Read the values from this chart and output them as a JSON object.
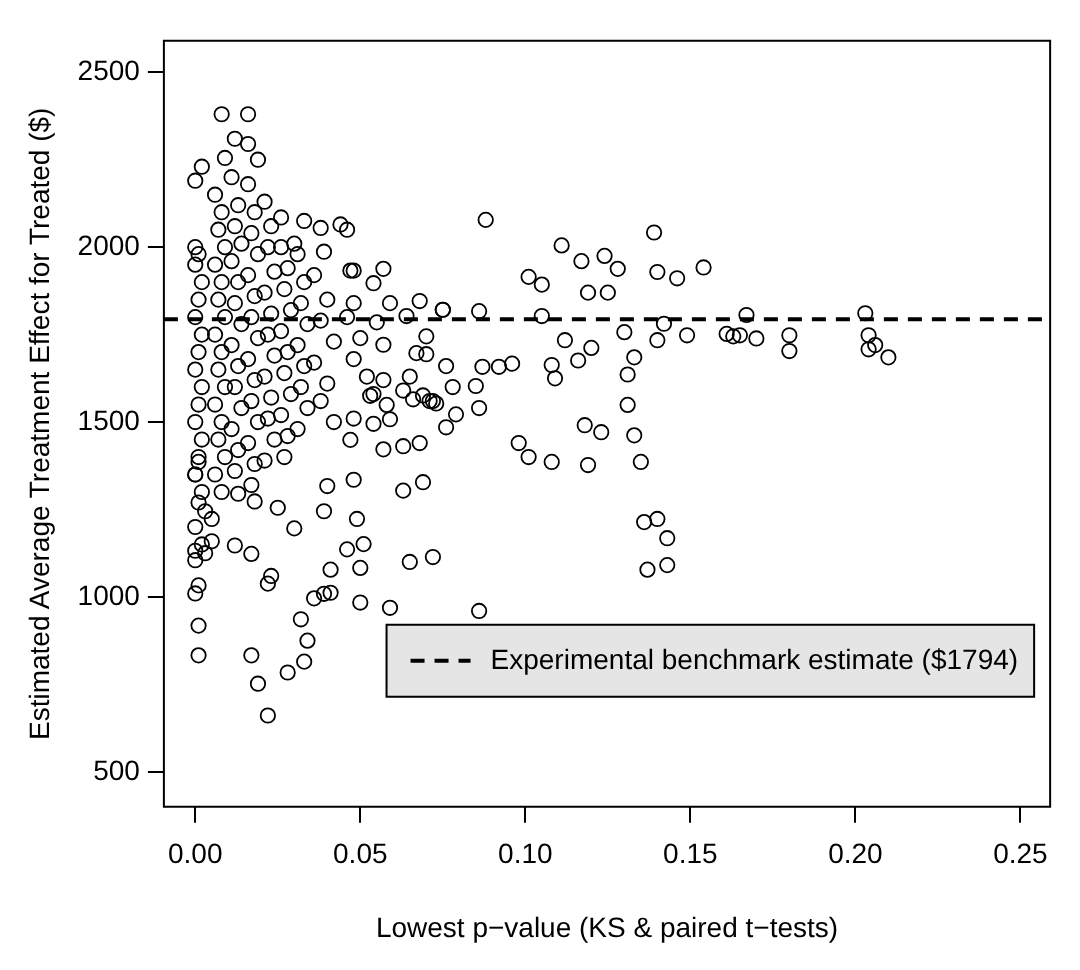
{
  "chart_data": {
    "type": "scatter",
    "xlabel": "Lowest p−value (KS & paired t−tests)",
    "ylabel": "Estimated Average Treatment Effect for Treated ($)",
    "xlim": [
      -0.0095,
      0.259
    ],
    "xticks": [
      {
        "value": 0,
        "label": "0.00"
      },
      {
        "value": 0.05,
        "label": "0.05"
      },
      {
        "value": 0.1,
        "label": "0.10"
      },
      {
        "value": 0.15,
        "label": "0.15"
      },
      {
        "value": 0.2,
        "label": "0.20"
      },
      {
        "value": 0.25,
        "label": "0.25"
      }
    ],
    "ylim": [
      400,
      2590
    ],
    "yticks": [
      500,
      1000,
      1500,
      2000,
      2500
    ],
    "grid": false,
    "marker": "circle",
    "legend": "bottom right",
    "ref_lines": [
      {
        "axis": "y",
        "value": 1794,
        "label": "Experimental benchmark estimate ($1794)",
        "color": "#000000",
        "line_style": "dashed"
      }
    ],
    "series": [
      {
        "color": "#000000",
        "x": [
          0.0,
          0.001,
          0.0,
          0.002,
          0.001,
          0.0,
          0.002,
          0.001,
          0.0,
          0.002,
          0.001,
          0.0,
          0.002,
          0.001,
          0.0,
          0.002,
          0.001,
          0.0,
          0.002,
          0.006,
          0.008,
          0.007,
          0.009,
          0.006,
          0.008,
          0.007,
          0.009,
          0.006,
          0.008,
          0.007,
          0.009,
          0.006,
          0.008,
          0.007,
          0.009,
          0.006,
          0.008,
          0.011,
          0.013,
          0.012,
          0.014,
          0.011,
          0.013,
          0.012,
          0.014,
          0.011,
          0.013,
          0.012,
          0.014,
          0.011,
          0.013,
          0.012,
          0.016,
          0.018,
          0.017,
          0.019,
          0.016,
          0.018,
          0.017,
          0.019,
          0.016,
          0.018,
          0.017,
          0.019,
          0.016,
          0.018,
          0.017,
          0.021,
          0.023,
          0.022,
          0.024,
          0.021,
          0.023,
          0.022,
          0.024,
          0.021,
          0.023,
          0.022,
          0.024,
          0.021,
          0.026,
          0.028,
          0.027,
          0.029,
          0.026,
          0.028,
          0.027,
          0.029,
          0.026,
          0.028,
          0.027,
          0.031,
          0.033,
          0.032,
          0.034,
          0.031,
          0.033,
          0.032,
          0.034,
          0.031,
          0.036,
          0.04,
          0.038,
          0.042,
          0.036,
          0.04,
          0.038,
          0.042,
          0.046,
          0.05,
          0.048,
          0.052,
          0.054,
          0.008,
          0.016,
          0.012,
          0.016,
          0.009,
          0.019,
          0.002,
          0.0,
          0.026,
          0.033,
          0.044,
          0.046,
          0.038,
          0.03,
          0.039,
          0.047,
          0.048,
          0.057,
          0.054,
          0.068,
          0.075,
          0.064,
          0.07,
          0.069,
          0.073,
          0.076,
          0.063,
          0.068,
          0.057,
          0.047,
          0.048,
          0.069,
          0.063,
          0.04,
          0.039,
          0.049,
          0.03,
          0.025,
          0.018,
          0.013,
          0.012,
          0.017,
          0.046,
          0.051,
          0.05,
          0.065,
          0.041,
          0.023,
          0.022,
          0.036,
          0.039,
          0.041,
          0.05,
          0.059,
          0.032,
          0.034,
          0.033,
          0.028,
          0.017,
          0.019,
          0.022,
          0.001,
          0.001,
          0.001,
          0.0,
          0.0,
          0.0,
          0.001,
          0.003,
          0.005,
          0.005,
          0.003,
          0.0,
          0.057,
          0.057,
          0.063,
          0.058,
          0.065,
          0.053,
          0.048,
          0.054,
          0.059,
          0.066,
          0.071,
          0.07,
          0.076,
          0.067,
          0.055,
          0.048,
          0.059,
          0.088,
          0.111,
          0.117,
          0.124,
          0.128,
          0.139,
          0.14,
          0.146,
          0.154,
          0.101,
          0.105,
          0.119,
          0.125,
          0.075,
          0.086,
          0.105,
          0.167,
          0.203,
          0.161,
          0.163,
          0.165,
          0.17,
          0.18,
          0.18,
          0.204,
          0.204,
          0.206,
          0.21,
          0.149,
          0.142,
          0.14,
          0.13,
          0.112,
          0.12,
          0.116,
          0.108,
          0.109,
          0.133,
          0.131,
          0.131,
          0.133,
          0.135,
          0.118,
          0.123,
          0.119,
          0.098,
          0.101,
          0.108,
          0.136,
          0.14,
          0.143,
          0.137,
          0.143,
          0.086,
          0.092,
          0.096,
          0.087,
          0.085,
          0.079,
          0.078,
          0.086,
          0.072,
          0.072
        ],
        "values": [
          2000,
          1980,
          1950,
          1900,
          1850,
          1800,
          1750,
          1700,
          1650,
          1600,
          1550,
          1500,
          1450,
          1400,
          1350,
          1300,
          1270,
          1200,
          1150,
          2150,
          2100,
          2050,
          2000,
          1950,
          1900,
          1850,
          1800,
          1750,
          1700,
          1650,
          1600,
          1550,
          1500,
          1450,
          1400,
          1350,
          1300,
          2200,
          2120,
          2060,
          2010,
          1960,
          1900,
          1840,
          1780,
          1720,
          1660,
          1600,
          1540,
          1480,
          1420,
          1360,
          2180,
          2100,
          2040,
          1980,
          1920,
          1860,
          1800,
          1740,
          1680,
          1620,
          1560,
          1500,
          1440,
          1380,
          1320,
          2130,
          2060,
          2000,
          1930,
          1870,
          1810,
          1750,
          1690,
          1630,
          1570,
          1510,
          1450,
          1390,
          2000,
          1940,
          1880,
          1820,
          1760,
          1700,
          1640,
          1580,
          1520,
          1460,
          1400,
          1980,
          1900,
          1840,
          1780,
          1720,
          1660,
          1600,
          1540,
          1480,
          1920,
          1850,
          1790,
          1730,
          1670,
          1610,
          1560,
          1500,
          1800,
          1740,
          1680,
          1630,
          1580,
          2380,
          2380,
          2310,
          2295,
          2255,
          2250,
          2230,
          2190,
          2085,
          2075,
          2065,
          2050,
          2055,
          2010,
          1987,
          1933,
          1933,
          1938,
          1897,
          1846,
          1821,
          1803,
          1694,
          1576,
          1553,
          1485,
          1431,
          1440,
          1422,
          1449,
          1335,
          1328,
          1304,
          1317,
          1245,
          1223,
          1196,
          1255,
          1273,
          1295,
          1147,
          1123,
          1136,
          1151,
          1083,
          1100,
          1078,
          1060,
          1038,
          996,
          1009,
          1012,
          984,
          969,
          936,
          875,
          815,
          784,
          833,
          752,
          661,
          833,
          918,
          1033,
          1010,
          1132,
          1105,
          1386,
          1125,
          1159,
          1223,
          1245,
          1350,
          1721,
          1620,
          1590,
          1549,
          1630,
          1575,
          1510,
          1495,
          1508,
          1565,
          1560,
          1745,
          1660,
          1697,
          1785,
          1840,
          1840,
          2078,
          2005,
          1960,
          1975,
          1938,
          2042,
          1929,
          1911,
          1942,
          1915,
          1893,
          1870,
          1870,
          1821,
          1817,
          1803,
          1806,
          1811,
          1752,
          1745,
          1748,
          1739,
          1748,
          1703,
          1748,
          1708,
          1720,
          1685,
          1748,
          1781,
          1734,
          1757,
          1734,
          1712,
          1676,
          1663,
          1625,
          1685,
          1636,
          1549,
          1462,
          1386,
          1491,
          1471,
          1377,
          1440,
          1400,
          1386,
          1214,
          1223,
          1168,
          1078,
          1091,
          960,
          1658,
          1667,
          1658,
          1603,
          1522,
          1600,
          1540,
          1560,
          1114
        ]
      }
    ]
  }
}
